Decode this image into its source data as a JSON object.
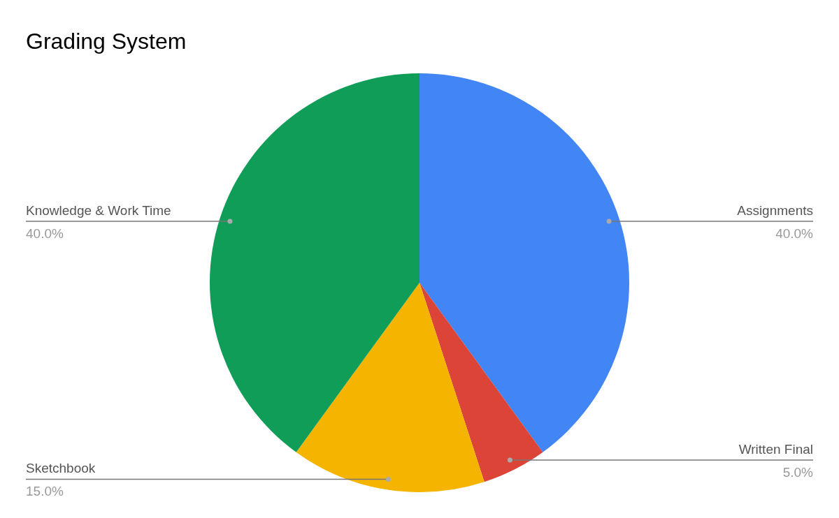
{
  "chart_data": {
    "type": "pie",
    "title": "Grading System",
    "categories": [
      "Assignments",
      "Written Final",
      "Sketchbook",
      "Knowledge & Work Time"
    ],
    "values": [
      40,
      5,
      15,
      40
    ],
    "value_labels": [
      "40.0%",
      "5.0%",
      "15.0%",
      "40.0%"
    ],
    "colors": [
      "#4285f4",
      "#db4437",
      "#f4b400",
      "#0f9d58"
    ],
    "legend": false
  }
}
